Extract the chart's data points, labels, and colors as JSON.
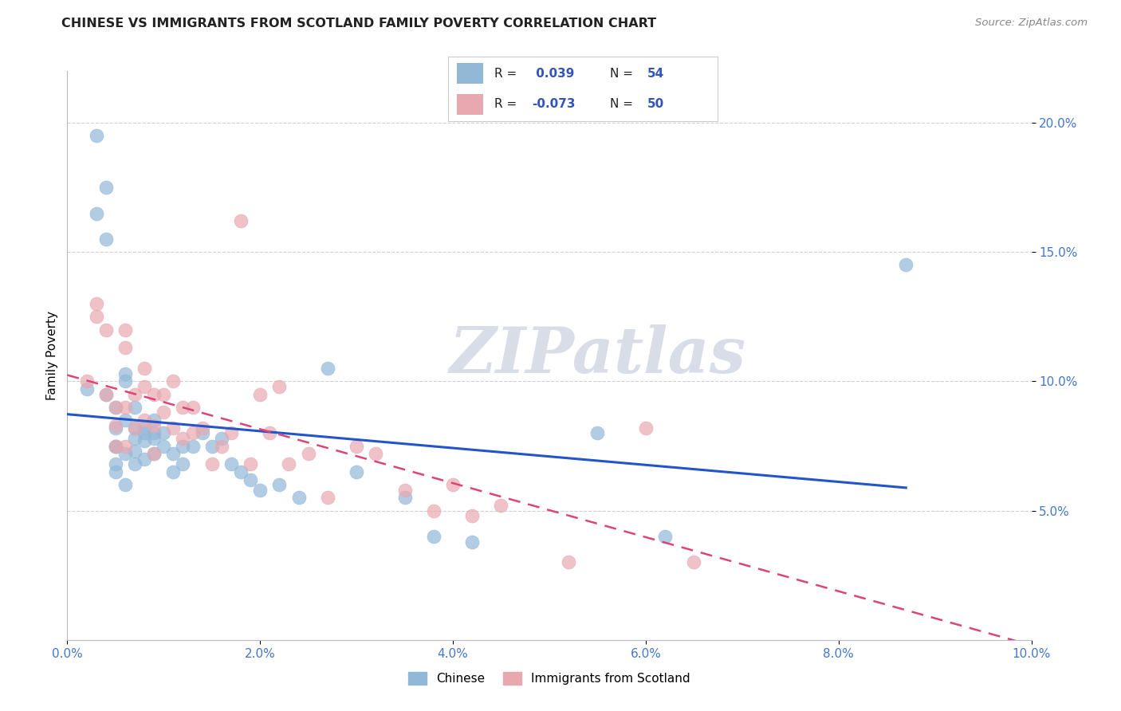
{
  "title": "CHINESE VS IMMIGRANTS FROM SCOTLAND FAMILY POVERTY CORRELATION CHART",
  "source": "Source: ZipAtlas.com",
  "ylabel": "Family Poverty",
  "xlim": [
    0.0,
    0.1
  ],
  "ylim": [
    0.0,
    0.22
  ],
  "xticks": [
    0.0,
    0.02,
    0.04,
    0.06,
    0.08,
    0.1
  ],
  "yticks": [
    0.05,
    0.1,
    0.15,
    0.2
  ],
  "ytick_labels": [
    "5.0%",
    "10.0%",
    "15.0%",
    "20.0%"
  ],
  "xtick_labels": [
    "0.0%",
    "2.0%",
    "4.0%",
    "6.0%",
    "8.0%",
    "10.0%"
  ],
  "blue_R": 0.039,
  "blue_N": 54,
  "pink_R": -0.073,
  "pink_N": 50,
  "blue_color": "#92b8d8",
  "pink_color": "#e8a8b0",
  "trend_blue_color": "#2255cc",
  "trend_pink_color": "#dd4477",
  "watermark_color": "#d8dde8",
  "legend_entries": [
    "Chinese",
    "Immigrants from Scotland"
  ],
  "blue_scatter_x": [
    0.002,
    0.003,
    0.003,
    0.004,
    0.004,
    0.004,
    0.005,
    0.005,
    0.005,
    0.005,
    0.005,
    0.005,
    0.006,
    0.006,
    0.006,
    0.006,
    0.006,
    0.007,
    0.007,
    0.007,
    0.007,
    0.007,
    0.008,
    0.008,
    0.008,
    0.008,
    0.009,
    0.009,
    0.009,
    0.009,
    0.01,
    0.01,
    0.011,
    0.011,
    0.012,
    0.012,
    0.013,
    0.014,
    0.015,
    0.016,
    0.017,
    0.018,
    0.019,
    0.02,
    0.022,
    0.024,
    0.027,
    0.03,
    0.035,
    0.038,
    0.042,
    0.055,
    0.062,
    0.087
  ],
  "blue_scatter_y": [
    0.097,
    0.195,
    0.165,
    0.095,
    0.175,
    0.155,
    0.09,
    0.082,
    0.075,
    0.068,
    0.075,
    0.065,
    0.103,
    0.1,
    0.085,
    0.072,
    0.06,
    0.09,
    0.082,
    0.078,
    0.073,
    0.068,
    0.082,
    0.08,
    0.077,
    0.07,
    0.085,
    0.08,
    0.078,
    0.072,
    0.08,
    0.075,
    0.072,
    0.065,
    0.075,
    0.068,
    0.075,
    0.08,
    0.075,
    0.078,
    0.068,
    0.065,
    0.062,
    0.058,
    0.06,
    0.055,
    0.105,
    0.065,
    0.055,
    0.04,
    0.038,
    0.08,
    0.04,
    0.145
  ],
  "pink_scatter_x": [
    0.002,
    0.003,
    0.003,
    0.004,
    0.004,
    0.005,
    0.005,
    0.005,
    0.006,
    0.006,
    0.006,
    0.006,
    0.007,
    0.007,
    0.008,
    0.008,
    0.008,
    0.009,
    0.009,
    0.009,
    0.01,
    0.01,
    0.011,
    0.011,
    0.012,
    0.012,
    0.013,
    0.013,
    0.014,
    0.015,
    0.016,
    0.017,
    0.018,
    0.019,
    0.02,
    0.021,
    0.022,
    0.023,
    0.025,
    0.027,
    0.03,
    0.032,
    0.035,
    0.038,
    0.04,
    0.042,
    0.045,
    0.052,
    0.06,
    0.065
  ],
  "pink_scatter_y": [
    0.1,
    0.13,
    0.125,
    0.12,
    0.095,
    0.09,
    0.083,
    0.075,
    0.12,
    0.113,
    0.09,
    0.075,
    0.095,
    0.082,
    0.105,
    0.098,
    0.085,
    0.095,
    0.083,
    0.072,
    0.095,
    0.088,
    0.1,
    0.082,
    0.09,
    0.078,
    0.09,
    0.08,
    0.082,
    0.068,
    0.075,
    0.08,
    0.162,
    0.068,
    0.095,
    0.08,
    0.098,
    0.068,
    0.072,
    0.055,
    0.075,
    0.072,
    0.058,
    0.05,
    0.06,
    0.048,
    0.052,
    0.03,
    0.082,
    0.03
  ]
}
